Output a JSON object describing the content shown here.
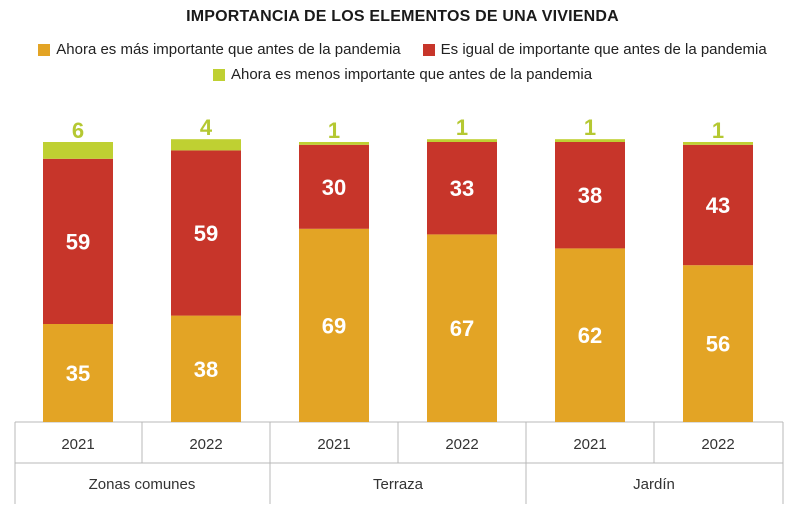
{
  "chart_data": {
    "type": "bar",
    "stacked": true,
    "title": "IMPORTANCIA DE LOS ELEMENTOS DE UNA VIVIENDA",
    "groups": [
      "Zonas comunes",
      "Terraza",
      "Jardín"
    ],
    "categories": [
      "2021",
      "2022",
      "2021",
      "2022",
      "2021",
      "2022"
    ],
    "series": [
      {
        "name": "Ahora es más importante que antes de la pandemia",
        "color": "#e3a425",
        "label_color": "#ffffff",
        "values": [
          35,
          38,
          69,
          67,
          62,
          56
        ]
      },
      {
        "name": "Es igual de importante que antes de la pandemia",
        "color": "#c7352a",
        "label_color": "#ffffff",
        "values": [
          59,
          59,
          30,
          33,
          38,
          43
        ]
      },
      {
        "name": "Ahora es menos importante que antes de la pandemia",
        "color": "#bfd032",
        "label_color": "#b5c832",
        "values": [
          6,
          4,
          1,
          1,
          1,
          1
        ]
      }
    ],
    "ylim": [
      0,
      100
    ],
    "xlabel": "",
    "ylabel": "",
    "legend_position": "top"
  }
}
